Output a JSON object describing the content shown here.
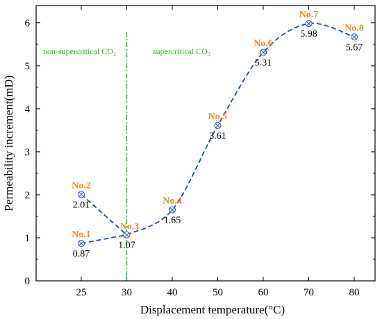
{
  "chart_data": {
    "type": "line",
    "xlabel": "Displacement temperature(°C)",
    "ylabel": "Permeability increment(mD)",
    "x_ticks": [
      "25",
      "30",
      "40",
      "50",
      "60",
      "70",
      "80"
    ],
    "y_ticks": [
      "0",
      "1",
      "2",
      "3",
      "4",
      "5",
      "6"
    ],
    "ylim": [
      0,
      6.4
    ],
    "grid": false,
    "legend": "none",
    "points": [
      {
        "name": "No.1",
        "x": 25,
        "y": 0.87,
        "label": "0.87"
      },
      {
        "name": "No.2",
        "x": 25,
        "y": 2.01,
        "label": "2.01"
      },
      {
        "name": "No.3",
        "x": 30,
        "y": 1.07,
        "label": "1.07"
      },
      {
        "name": "No.4",
        "x": 40,
        "y": 1.65,
        "label": "1.65"
      },
      {
        "name": "No.5",
        "x": 50,
        "y": 3.61,
        "label": "3.61"
      },
      {
        "name": "No.6",
        "x": 60,
        "y": 5.31,
        "label": "5.31"
      },
      {
        "name": "No.7",
        "x": 70,
        "y": 5.98,
        "label": "5.98"
      },
      {
        "name": "No.8",
        "x": 80,
        "y": 5.67,
        "label": "5.67"
      }
    ],
    "divider": {
      "x": 30,
      "left_label": "non-supercritical CO₂",
      "right_label": "supercritical CO₂"
    },
    "colors": {
      "line": "#1f3fe0",
      "marker": "#3355dd",
      "point_name": "#f08a1f",
      "divider": "#1fb81f",
      "axis": "#000000"
    }
  }
}
